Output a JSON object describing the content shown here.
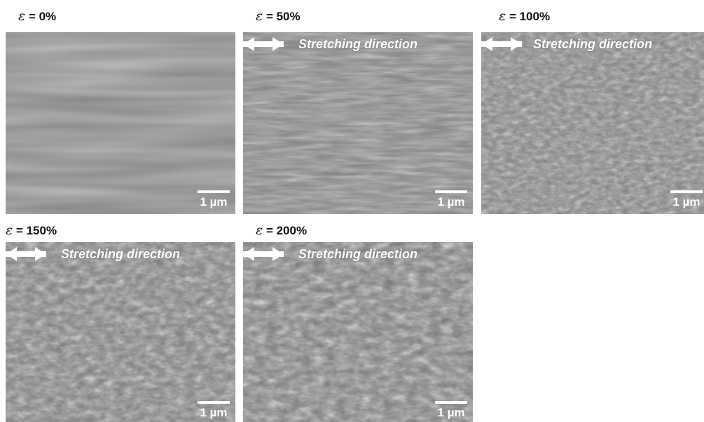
{
  "figure": {
    "panels": [
      {
        "strain_symbol": "ε",
        "strain_value": "= 0%",
        "has_arrow": false,
        "arrow_text": "",
        "scale_bar": "1 µm",
        "texture": "smooth"
      },
      {
        "strain_symbol": "ε",
        "strain_value": "= 50%",
        "has_arrow": true,
        "arrow_text": "Stretching direction",
        "scale_bar": "1 µm",
        "texture": "fine"
      },
      {
        "strain_symbol": "ε",
        "strain_value": "= 100%",
        "has_arrow": true,
        "arrow_text": "Stretching direction",
        "scale_bar": "1 µm",
        "texture": "medium"
      },
      {
        "strain_symbol": "ε",
        "strain_value": "= 150%",
        "has_arrow": true,
        "arrow_text": "Stretching direction",
        "scale_bar": "1 µm",
        "texture": "coarse"
      },
      {
        "strain_symbol": "ε",
        "strain_value": "= 200%",
        "has_arrow": true,
        "arrow_text": "Stretching direction",
        "scale_bar": "1 µm",
        "texture": "coarse"
      }
    ]
  },
  "colors": {
    "label_text": "#111111",
    "overlay_text": "#ffffff",
    "sem_base": "#7e7e7e"
  }
}
